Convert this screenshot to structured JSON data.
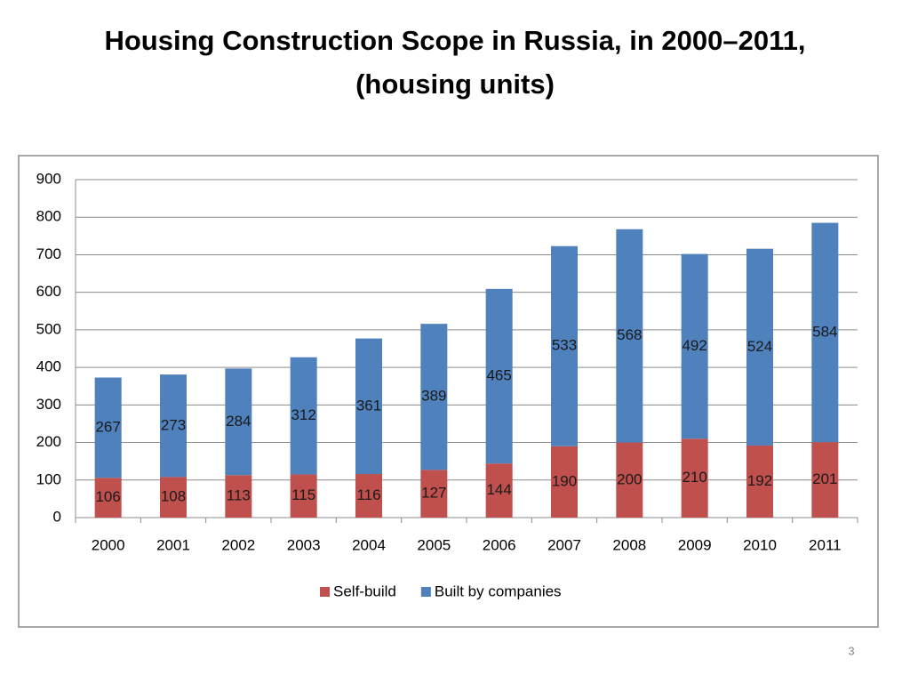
{
  "chart_data": {
    "type": "stacked-bar",
    "title": [
      "Housing Construction Scope in Russia, in 2000–2011,",
      "(housing units)"
    ],
    "categories": [
      "2000",
      "2001",
      "2002",
      "2003",
      "2004",
      "2005",
      "2006",
      "2007",
      "2008",
      "2009",
      "2010",
      "2011"
    ],
    "series": [
      {
        "name": "Self-build",
        "color": "#c0504d",
        "values": [
          106,
          108,
          113,
          115,
          116,
          127,
          144,
          190,
          200,
          210,
          192,
          201
        ]
      },
      {
        "name": "Built by companies",
        "color": "#4f81bd",
        "values": [
          267,
          273,
          284,
          312,
          361,
          389,
          465,
          533,
          568,
          492,
          524,
          584
        ]
      }
    ],
    "ylim": [
      0,
      900
    ],
    "yticks": [
      0,
      100,
      200,
      300,
      400,
      500,
      600,
      700,
      800,
      900
    ],
    "grid": true,
    "legend": "bottom"
  },
  "page_number": 3
}
